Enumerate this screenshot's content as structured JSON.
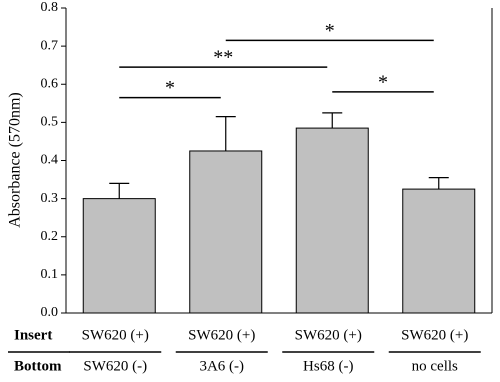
{
  "chart_data": {
    "type": "bar",
    "y_label": "Absorbance (570nm)",
    "categories": [
      null,
      null,
      null,
      null
    ],
    "values": [
      0.3,
      0.425,
      0.485,
      0.325
    ],
    "errors": [
      0.04,
      0.09,
      0.04,
      0.03
    ],
    "color": "#c0c0c0",
    "ylim": [
      0,
      0.8
    ],
    "yticks": [
      {
        "value": 0,
        "label": "0.0"
      },
      {
        "value": 0.1,
        "label": "0.1"
      },
      {
        "value": 0.2,
        "label": "0.2"
      },
      {
        "value": 0.3,
        "label": "0.3"
      },
      {
        "value": 0.4,
        "label": "0.4"
      },
      {
        "value": 0.5,
        "label": "0.5"
      },
      {
        "value": 0.6,
        "label": "0.6"
      },
      {
        "value": 0.7,
        "label": "0.7"
      },
      {
        "value": 0.8,
        "label": "0.8"
      }
    ],
    "annotations": [
      "*",
      "**",
      "*",
      "*"
    ],
    "table": {
      "row_labels": [
        "Insert",
        "Bottom"
      ],
      "rows": [
        [
          "SW620 (+)",
          "SW620 (+)",
          "SW620 (+)",
          "SW620 (+)"
        ],
        [
          "SW620 (-)",
          "3A6 (-)",
          "Hs68 (-)",
          "no cells"
        ]
      ]
    }
  }
}
